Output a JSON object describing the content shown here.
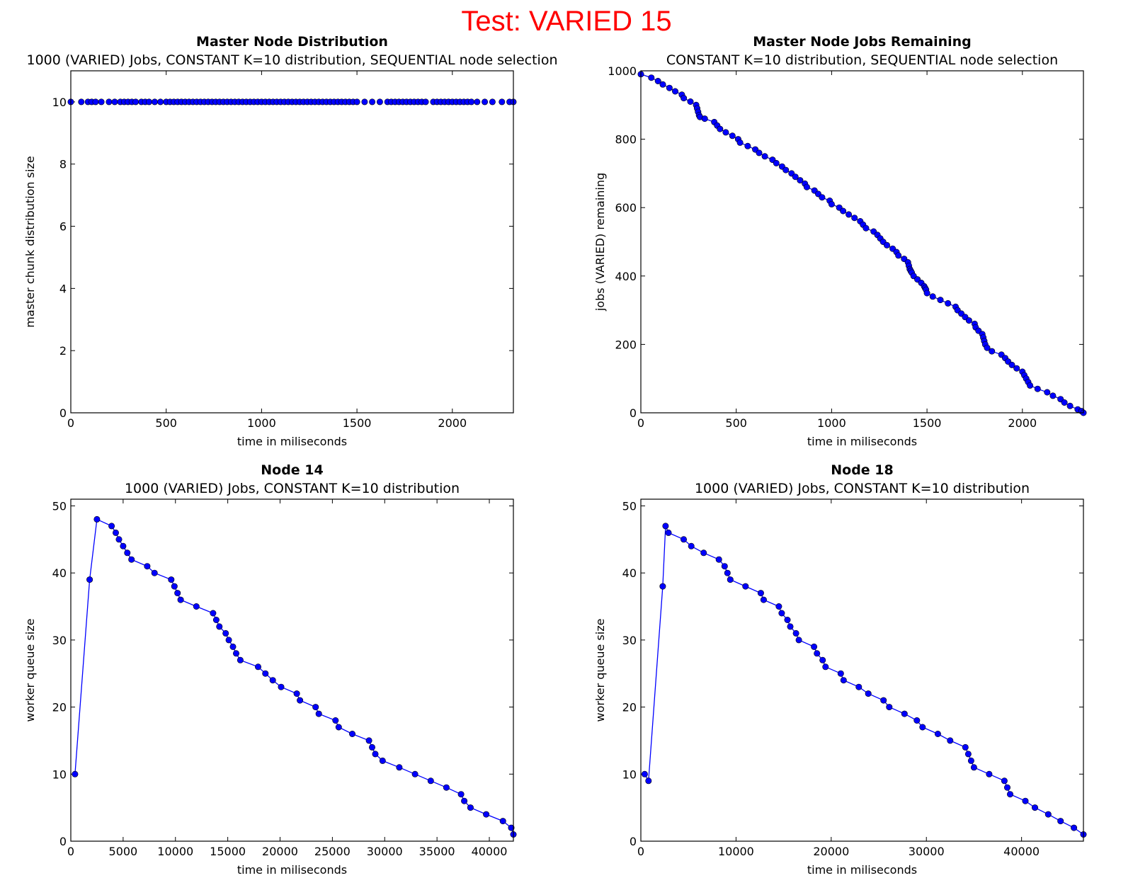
{
  "suptitle": "Test: VARIED 15",
  "colors": {
    "suptitle": "#ff0000",
    "series": "#0000ff",
    "marker": "#0000ff"
  },
  "chart_data": [
    {
      "type": "line",
      "title": "Master Node Distribution",
      "subtitle": "1000 (VARIED) Jobs, CONSTANT K=10 distribution, SEQUENTIAL node selection",
      "xlabel": "time in miliseconds",
      "ylabel": "master chunk distribution size",
      "xlim": [
        0,
        2320
      ],
      "ylim": [
        0,
        11
      ],
      "xticks": [
        0,
        500,
        1000,
        1500,
        2000
      ],
      "yticks": [
        0,
        2,
        4,
        6,
        8,
        10
      ],
      "markers_only": true,
      "series": [
        {
          "name": "distribution",
          "x": [
            0,
            55,
            90,
            110,
            130,
            160,
            200,
            230,
            260,
            280,
            300,
            320,
            340,
            370,
            390,
            410,
            440,
            470,
            500,
            520,
            540,
            560,
            580,
            600,
            620,
            640,
            660,
            680,
            700,
            720,
            740,
            760,
            780,
            800,
            820,
            840,
            860,
            880,
            900,
            920,
            940,
            960,
            980,
            1000,
            1020,
            1040,
            1060,
            1080,
            1100,
            1120,
            1140,
            1160,
            1180,
            1200,
            1220,
            1240,
            1260,
            1280,
            1300,
            1320,
            1340,
            1360,
            1380,
            1400,
            1420,
            1440,
            1460,
            1480,
            1500,
            1540,
            1580,
            1620,
            1660,
            1680,
            1700,
            1720,
            1740,
            1760,
            1780,
            1800,
            1820,
            1840,
            1860,
            1900,
            1920,
            1940,
            1960,
            1980,
            2000,
            2020,
            2040,
            2060,
            2080,
            2100,
            2130,
            2170,
            2210,
            2260,
            2300,
            2320
          ],
          "y": [
            10,
            10,
            10,
            10,
            10,
            10,
            10,
            10,
            10,
            10,
            10,
            10,
            10,
            10,
            10,
            10,
            10,
            10,
            10,
            10,
            10,
            10,
            10,
            10,
            10,
            10,
            10,
            10,
            10,
            10,
            10,
            10,
            10,
            10,
            10,
            10,
            10,
            10,
            10,
            10,
            10,
            10,
            10,
            10,
            10,
            10,
            10,
            10,
            10,
            10,
            10,
            10,
            10,
            10,
            10,
            10,
            10,
            10,
            10,
            10,
            10,
            10,
            10,
            10,
            10,
            10,
            10,
            10,
            10,
            10,
            10,
            10,
            10,
            10,
            10,
            10,
            10,
            10,
            10,
            10,
            10,
            10,
            10,
            10,
            10,
            10,
            10,
            10,
            10,
            10,
            10,
            10,
            10,
            10,
            10,
            10,
            10,
            10,
            10,
            10
          ]
        }
      ]
    },
    {
      "type": "line",
      "title": "Master Node Jobs Remaining",
      "subtitle": "CONSTANT K=10 distribution, SEQUENTIAL node selection",
      "xlabel": "time in miliseconds",
      "ylabel": "jobs (VARIED) remaining",
      "xlim": [
        0,
        2320
      ],
      "ylim": [
        0,
        1000
      ],
      "xticks": [
        0,
        500,
        1000,
        1500,
        2000
      ],
      "yticks": [
        0,
        200,
        400,
        600,
        800,
        1000
      ],
      "series": [
        {
          "name": "remaining",
          "x": [
            0,
            55,
            90,
            115,
            150,
            180,
            215,
            225,
            260,
            290,
            295,
            300,
            305,
            310,
            335,
            385,
            400,
            415,
            445,
            480,
            510,
            520,
            560,
            600,
            620,
            650,
            690,
            710,
            740,
            760,
            790,
            810,
            835,
            860,
            870,
            910,
            930,
            950,
            990,
            1000,
            1040,
            1060,
            1090,
            1120,
            1150,
            1165,
            1180,
            1220,
            1240,
            1255,
            1270,
            1290,
            1320,
            1340,
            1350,
            1380,
            1400,
            1405,
            1410,
            1415,
            1420,
            1430,
            1450,
            1470,
            1485,
            1490,
            1495,
            1500,
            1530,
            1570,
            1610,
            1650,
            1660,
            1680,
            1700,
            1720,
            1750,
            1755,
            1770,
            1790,
            1795,
            1800,
            1805,
            1815,
            1840,
            1890,
            1910,
            1925,
            1945,
            1970,
            2000,
            2010,
            2020,
            2030,
            2040,
            2080,
            2130,
            2160,
            2200,
            2220,
            2250,
            2290,
            2310,
            2320
          ],
          "y": [
            990,
            980,
            970,
            960,
            950,
            940,
            930,
            920,
            910,
            900,
            890,
            880,
            870,
            865,
            860,
            850,
            840,
            830,
            820,
            810,
            800,
            790,
            780,
            770,
            760,
            750,
            740,
            730,
            720,
            710,
            700,
            690,
            680,
            670,
            660,
            650,
            640,
            630,
            620,
            610,
            600,
            590,
            580,
            570,
            560,
            550,
            540,
            530,
            520,
            510,
            500,
            490,
            480,
            470,
            460,
            450,
            440,
            430,
            420,
            415,
            410,
            400,
            390,
            380,
            370,
            365,
            360,
            350,
            340,
            330,
            320,
            310,
            300,
            290,
            280,
            270,
            260,
            250,
            240,
            230,
            220,
            210,
            200,
            190,
            180,
            170,
            160,
            150,
            140,
            130,
            120,
            110,
            100,
            90,
            80,
            70,
            60,
            50,
            40,
            30,
            20,
            10,
            5,
            0
          ]
        }
      ]
    },
    {
      "type": "line",
      "title": "Node 14",
      "subtitle": "1000 (VARIED) Jobs, CONSTANT K=10 distribution",
      "xlabel": "time in miliseconds",
      "ylabel": "worker queue size",
      "xlim": [
        0,
        42300
      ],
      "ylim": [
        0,
        51
      ],
      "xticks": [
        0,
        5000,
        10000,
        15000,
        20000,
        25000,
        30000,
        35000,
        40000
      ],
      "yticks": [
        0,
        10,
        20,
        30,
        40,
        50
      ],
      "series": [
        {
          "name": "queue",
          "x": [
            400,
            1800,
            2500,
            3900,
            4300,
            4600,
            5000,
            5400,
            5800,
            7300,
            8000,
            9600,
            9900,
            10200,
            10500,
            12000,
            13600,
            13900,
            14200,
            14800,
            15100,
            15500,
            15800,
            16200,
            17900,
            18600,
            19300,
            20100,
            21600,
            21900,
            23400,
            23700,
            25300,
            25600,
            26900,
            28500,
            28800,
            29100,
            29800,
            31400,
            32900,
            34400,
            35900,
            37300,
            37600,
            38200,
            39700,
            41300,
            42100,
            42300
          ],
          "y": [
            10,
            39,
            48,
            47,
            46,
            45,
            44,
            43,
            42,
            41,
            40,
            39,
            38,
            37,
            36,
            35,
            34,
            33,
            32,
            31,
            30,
            29,
            28,
            27,
            26,
            25,
            24,
            23,
            22,
            21,
            20,
            19,
            18,
            17,
            16,
            15,
            14,
            13,
            12,
            11,
            10,
            9,
            8,
            7,
            6,
            5,
            4,
            3,
            2,
            1
          ]
        }
      ]
    },
    {
      "type": "line",
      "title": "Node 18",
      "subtitle": "1000 (VARIED) Jobs, CONSTANT K=10 distribution",
      "xlabel": "time in miliseconds",
      "ylabel": "worker queue size",
      "xlim": [
        0,
        46500
      ],
      "ylim": [
        0,
        51
      ],
      "xticks": [
        0,
        10000,
        20000,
        30000,
        40000
      ],
      "yticks": [
        0,
        10,
        20,
        30,
        40,
        50
      ],
      "series": [
        {
          "name": "queue",
          "x": [
            400,
            800,
            2300,
            2600,
            2900,
            4500,
            5300,
            6600,
            8200,
            8800,
            9100,
            9400,
            11000,
            12600,
            12900,
            14500,
            14800,
            15400,
            15700,
            16300,
            16600,
            18200,
            18500,
            19100,
            19400,
            21000,
            21300,
            22900,
            23900,
            25500,
            26100,
            27700,
            29000,
            29600,
            31200,
            32500,
            34100,
            34400,
            34700,
            35000,
            36600,
            38200,
            38500,
            38800,
            40400,
            41400,
            42800,
            44100,
            45500,
            46500
          ],
          "y": [
            10,
            9,
            38,
            47,
            46,
            45,
            44,
            43,
            42,
            41,
            40,
            39,
            38,
            37,
            36,
            35,
            34,
            33,
            32,
            31,
            30,
            29,
            28,
            27,
            26,
            25,
            24,
            23,
            22,
            21,
            20,
            19,
            18,
            17,
            16,
            15,
            14,
            13,
            12,
            11,
            10,
            9,
            8,
            7,
            6,
            5,
            4,
            3,
            2,
            1
          ]
        }
      ]
    }
  ]
}
